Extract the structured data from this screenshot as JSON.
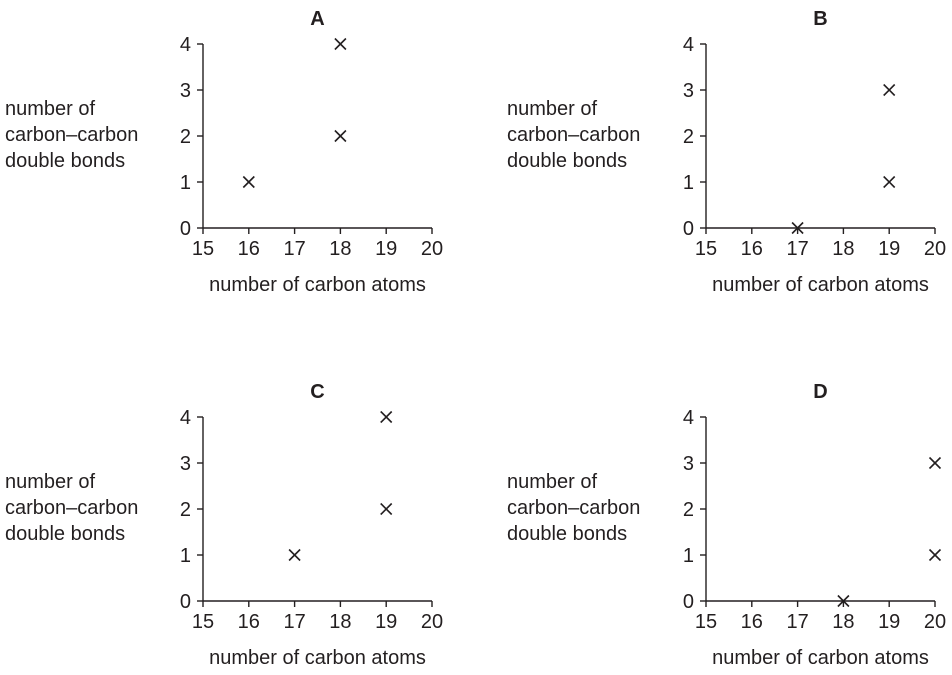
{
  "chart_data": [
    {
      "type": "scatter",
      "title": "A",
      "xlabel": "number of carbon atoms",
      "ylabel": [
        "number of",
        "carbon–carbon",
        "double bonds"
      ],
      "xlim": [
        15,
        20
      ],
      "ylim": [
        0,
        4
      ],
      "xticks": [
        "15",
        "16",
        "17",
        "18",
        "19",
        "20"
      ],
      "yticks": [
        "0",
        "1",
        "2",
        "3",
        "4"
      ],
      "points": [
        {
          "x": 16,
          "y": 1
        },
        {
          "x": 18,
          "y": 2
        },
        {
          "x": 18,
          "y": 4
        }
      ],
      "marker": "cross",
      "grid": false
    },
    {
      "type": "scatter",
      "title": "B",
      "xlabel": "number of carbon atoms",
      "ylabel": [
        "number of",
        "carbon–carbon",
        "double bonds"
      ],
      "xlim": [
        15,
        20
      ],
      "ylim": [
        0,
        4
      ],
      "xticks": [
        "15",
        "16",
        "17",
        "18",
        "19",
        "20"
      ],
      "yticks": [
        "0",
        "1",
        "2",
        "3",
        "4"
      ],
      "points": [
        {
          "x": 17,
          "y": 0
        },
        {
          "x": 19,
          "y": 1
        },
        {
          "x": 19,
          "y": 3
        }
      ],
      "marker": "cross",
      "grid": false
    },
    {
      "type": "scatter",
      "title": "C",
      "xlabel": "number of carbon atoms",
      "ylabel": [
        "number of",
        "carbon–carbon",
        "double bonds"
      ],
      "xlim": [
        15,
        20
      ],
      "ylim": [
        0,
        4
      ],
      "xticks": [
        "15",
        "16",
        "17",
        "18",
        "19",
        "20"
      ],
      "yticks": [
        "0",
        "1",
        "2",
        "3",
        "4"
      ],
      "points": [
        {
          "x": 17,
          "y": 1
        },
        {
          "x": 19,
          "y": 2
        },
        {
          "x": 19,
          "y": 4
        }
      ],
      "marker": "cross",
      "grid": false
    },
    {
      "type": "scatter",
      "title": "D",
      "xlabel": "number of carbon atoms",
      "ylabel": [
        "number of",
        "carbon–carbon",
        "double bonds"
      ],
      "xlim": [
        15,
        20
      ],
      "ylim": [
        0,
        4
      ],
      "xticks": [
        "15",
        "16",
        "17",
        "18",
        "19",
        "20"
      ],
      "yticks": [
        "0",
        "1",
        "2",
        "3",
        "4"
      ],
      "points": [
        {
          "x": 18,
          "y": 0
        },
        {
          "x": 20,
          "y": 1
        },
        {
          "x": 20,
          "y": 3
        }
      ],
      "marker": "cross",
      "grid": false
    }
  ]
}
